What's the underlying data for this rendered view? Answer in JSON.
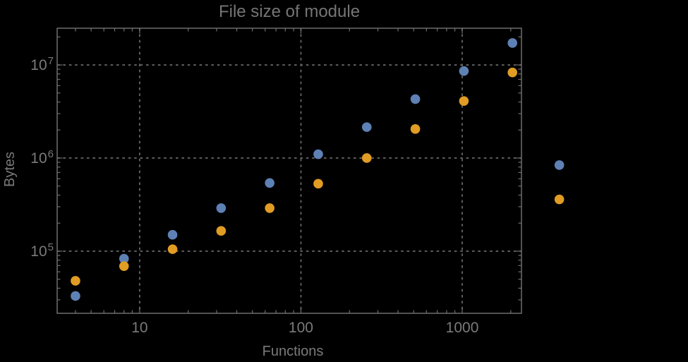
{
  "window": {
    "background": "#000000"
  },
  "chart_data": {
    "type": "scatter",
    "title": "File size of module",
    "xlabel": "Functions",
    "ylabel": "Bytes",
    "x_scale": "log",
    "y_scale": "log",
    "xlim": [
      3.08,
      2330
    ],
    "ylim": [
      21500,
      24800000
    ],
    "x_major_ticks": [
      10,
      100,
      1000
    ],
    "x_tick_labels": [
      "10",
      "100",
      "1000"
    ],
    "y_major_ticks": [
      100000,
      1000000,
      10000000
    ],
    "y_tick_label_base": "10",
    "y_tick_exponents": [
      "5",
      "6",
      "7"
    ],
    "grid": true,
    "grid_style": "dotted",
    "x": [
      4,
      8,
      16,
      32,
      64,
      128,
      256,
      512,
      1024,
      2048
    ],
    "series": [
      {
        "name": "series-blue",
        "color": "#5e81b5",
        "values": [
          33000,
          83000,
          150000,
          290000,
          540000,
          1100000,
          2150000,
          4300000,
          8600000,
          17200000
        ]
      },
      {
        "name": "series-orange",
        "color": "#e19c24",
        "values": [
          48000,
          69000,
          105000,
          165000,
          290000,
          530000,
          1000000,
          2050000,
          4100000,
          8300000
        ]
      }
    ],
    "outside_points": [
      {
        "series": "series-blue",
        "color": "#5e81b5",
        "x": 4000,
        "y": 840000
      },
      {
        "series": "series-orange",
        "color": "#e19c24",
        "x": 4000,
        "y": 360000
      }
    ]
  },
  "style": {
    "background": "#000000",
    "frame_color": "#6e6e6e",
    "tick_color": "#6e6e6e",
    "grid_color": "#626262",
    "text_color": "#7a7a7a",
    "title_color": "#757575",
    "point_radius": 6.8
  }
}
